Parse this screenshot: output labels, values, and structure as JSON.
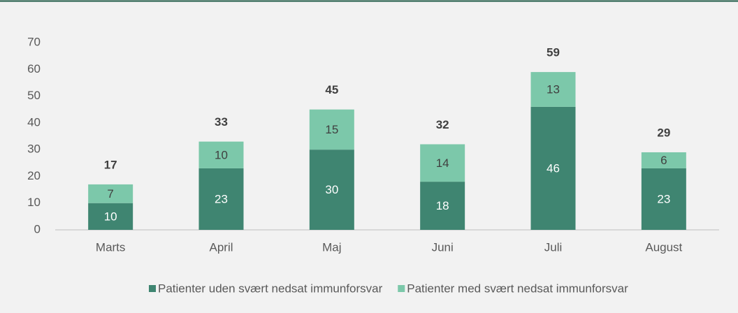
{
  "chart_data": {
    "type": "stacked-bar",
    "categories": [
      "Marts",
      "April",
      "Maj",
      "Juni",
      "Juli",
      "August"
    ],
    "series": [
      {
        "name": "Patienter uden svært nedsat immunforsvar",
        "color": "#3f8571",
        "values": [
          10,
          23,
          30,
          18,
          46,
          23
        ]
      },
      {
        "name": "Patienter med svært nedsat immunforsvar",
        "color": "#7cc8aa",
        "values": [
          7,
          10,
          15,
          14,
          13,
          6
        ]
      }
    ],
    "totals": [
      17,
      33,
      45,
      32,
      59,
      29
    ],
    "ylim": [
      0,
      70
    ],
    "yticks": [
      0,
      10,
      20,
      30,
      40,
      50,
      60,
      70
    ],
    "grid": false
  }
}
